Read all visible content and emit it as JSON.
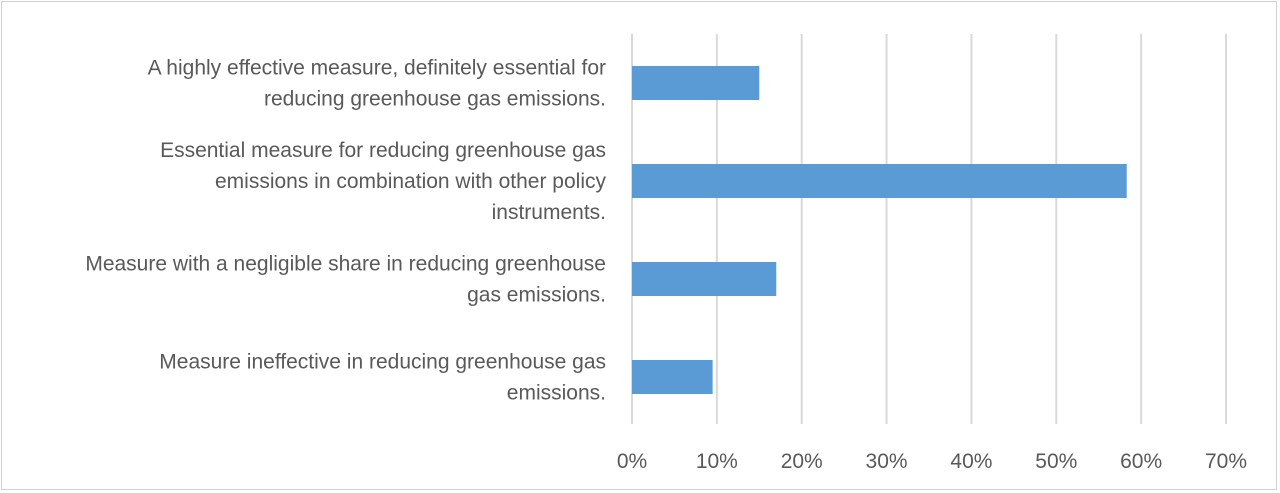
{
  "chart_data": {
    "type": "bar",
    "orientation": "horizontal",
    "categories": [
      "A highly effective measure, definitely essential for reducing greenhouse gas emissions.",
      "Essential measure for reducing greenhouse gas emissions in combination with other policy instruments.",
      "Measure with a negligible share in reducing greenhouse gas emissions.",
      "Measure ineffective in reducing greenhouse gas emissions."
    ],
    "category_lines": [
      [
        "A highly effective measure, definitely essential for",
        "reducing greenhouse gas emissions."
      ],
      [
        "Essential measure for reducing greenhouse gas",
        "emissions in combination with other policy",
        "instruments."
      ],
      [
        "Measure with a negligible share in reducing greenhouse",
        "gas emissions."
      ],
      [
        "Measure ineffective in reducing greenhouse gas",
        "emissions."
      ]
    ],
    "values": [
      15,
      58.3,
      17,
      9.5
    ],
    "unit": "%",
    "xlim": [
      0,
      70
    ],
    "ticks": [
      0,
      10,
      20,
      30,
      40,
      50,
      60,
      70
    ],
    "tick_labels": [
      "0%",
      "10%",
      "20%",
      "30%",
      "40%",
      "50%",
      "60%",
      "70%"
    ],
    "grid": true,
    "legend": "none",
    "bar_color": "#5b9bd5",
    "grid_color": "#d9d9d9",
    "text_color": "#595959"
  }
}
